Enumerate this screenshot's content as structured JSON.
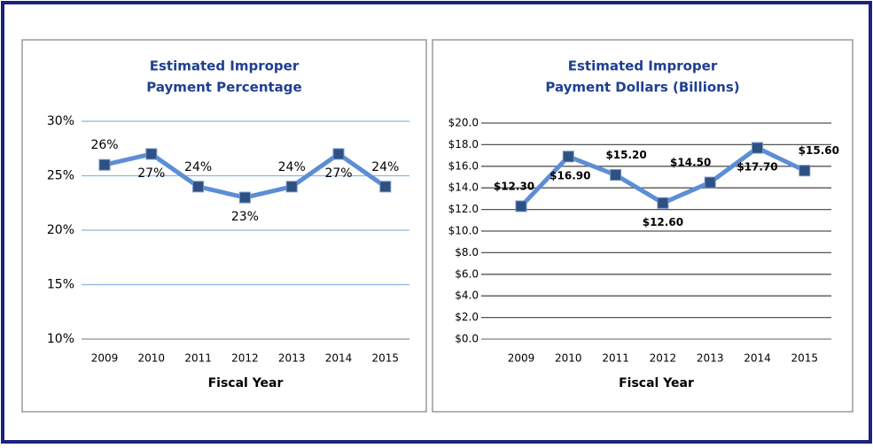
{
  "chart_data": [
    {
      "type": "line",
      "title": [
        "Estimated Improper",
        "Payment Percentage"
      ],
      "x_label": "Fiscal Year",
      "categories": [
        "2009",
        "2010",
        "2011",
        "2012",
        "2013",
        "2014",
        "2015"
      ],
      "values": [
        26,
        27,
        24,
        23,
        24,
        27,
        24
      ],
      "value_labels": [
        "26%",
        "27%",
        "24%",
        "23%",
        "24%",
        "27%",
        "24%"
      ],
      "color": "#5b8ed6",
      "marker_color": "#2f5083",
      "grid_color": "#8db4e2",
      "grid": true,
      "ylim": [
        10,
        30
      ],
      "yticks": [
        {
          "value": 10,
          "label": "10%"
        },
        {
          "value": 15,
          "label": "15%"
        },
        {
          "value": 20,
          "label": "20%"
        },
        {
          "value": 25,
          "label": "25%"
        },
        {
          "value": 30,
          "label": "30%"
        }
      ]
    },
    {
      "type": "line",
      "title": [
        "Estimated Improper",
        "Payment Dollars (Billions)"
      ],
      "x_label": "Fiscal Year",
      "categories": [
        "2009",
        "2010",
        "2011",
        "2012",
        "2013",
        "2014",
        "2015"
      ],
      "values": [
        12.3,
        16.9,
        15.2,
        12.6,
        14.5,
        17.7,
        15.6
      ],
      "value_labels": [
        "$12.30",
        "$16.90",
        "$15.20",
        "$12.60",
        "$14.50",
        "$17.70",
        "$15.60"
      ],
      "color": "#5b8ed6",
      "marker_color": "#2f5083",
      "grid_color": "#555555",
      "grid": true,
      "ylim": [
        0,
        20
      ],
      "yticks": [
        {
          "value": 0,
          "label": "$0.0"
        },
        {
          "value": 2,
          "label": "$2.0"
        },
        {
          "value": 4,
          "label": "$4.0"
        },
        {
          "value": 6,
          "label": "$6.0"
        },
        {
          "value": 8,
          "label": "$8.0"
        },
        {
          "value": 10,
          "label": "$10.0"
        },
        {
          "value": 12,
          "label": "$12.0"
        },
        {
          "value": 14,
          "label": "$14.0"
        },
        {
          "value": 16,
          "label": "$16.0"
        },
        {
          "value": 18,
          "label": "$18.0"
        },
        {
          "value": 20,
          "label": "$20.0"
        }
      ]
    }
  ]
}
